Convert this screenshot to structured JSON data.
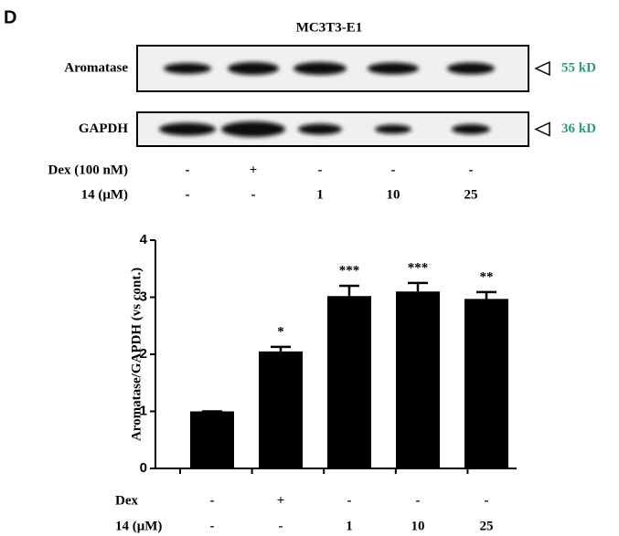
{
  "panel_label": "D",
  "blot": {
    "title": "MC3T3-E1",
    "rows": [
      {
        "label": "Aromatase",
        "size": "55 kD"
      },
      {
        "label": "GAPDH",
        "size": "36 kD"
      }
    ],
    "treatments": [
      {
        "name": "Dex (100 nM)",
        "values": [
          "-",
          "+",
          "-",
          "-",
          "-"
        ]
      },
      {
        "name": "14 (μM)",
        "values": [
          "-",
          "-",
          "1",
          "10",
          "25"
        ]
      }
    ]
  },
  "chart_data": {
    "type": "bar",
    "ylabel": "Aromatase/GAPDH (vs cont.)",
    "categories": [
      null,
      null,
      null,
      null,
      null
    ],
    "values": [
      1.0,
      2.05,
      3.02,
      3.1,
      2.97
    ],
    "errors": [
      0,
      0.08,
      0.18,
      0.15,
      0.12
    ],
    "significance": [
      null,
      "*",
      "***",
      "***",
      "**"
    ],
    "color": "#000000",
    "ylim": [
      0,
      4
    ],
    "yticks": [
      0,
      1,
      2,
      3,
      4
    ],
    "treatments": [
      {
        "name": "Dex",
        "values": [
          "-",
          "+",
          "-",
          "-",
          "-"
        ]
      },
      {
        "name": "14 (μM)",
        "values": [
          "-",
          "-",
          "1",
          "10",
          "25"
        ]
      }
    ]
  }
}
